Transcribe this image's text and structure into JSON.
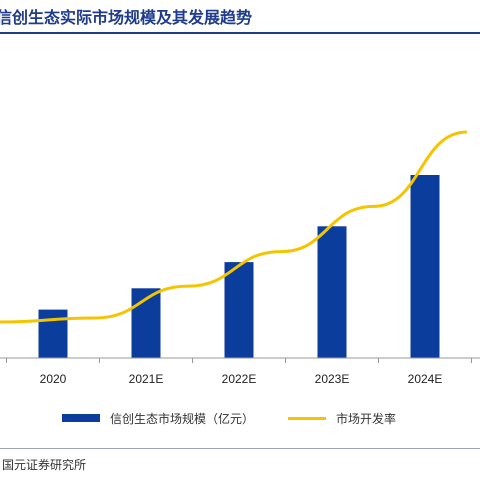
{
  "title": "信创生态实际市场规模及其发展趋势",
  "source": "国元证券研究所",
  "colors": {
    "bar": "#0b3d9c",
    "line": "#f5c400",
    "axis": "#999999",
    "title": "#1f3c8c"
  },
  "chart_data": {
    "type": "bar",
    "categories": [
      "2020",
      "2021E",
      "2022E",
      "2023E",
      "2024E"
    ],
    "series": [
      {
        "name": "信创生态市场规模（亿元）",
        "type": "bar",
        "values": [
          50,
          72,
          99,
          136,
          189
        ]
      },
      {
        "name": "市场开发率",
        "type": "line",
        "values": [
          0.3,
          0.42,
          0.55,
          0.72,
          1.0
        ]
      }
    ],
    "legend": [
      "信创生态市场规模（亿元）",
      "市场开发率"
    ],
    "legend_position": "bottom",
    "grid": false
  }
}
